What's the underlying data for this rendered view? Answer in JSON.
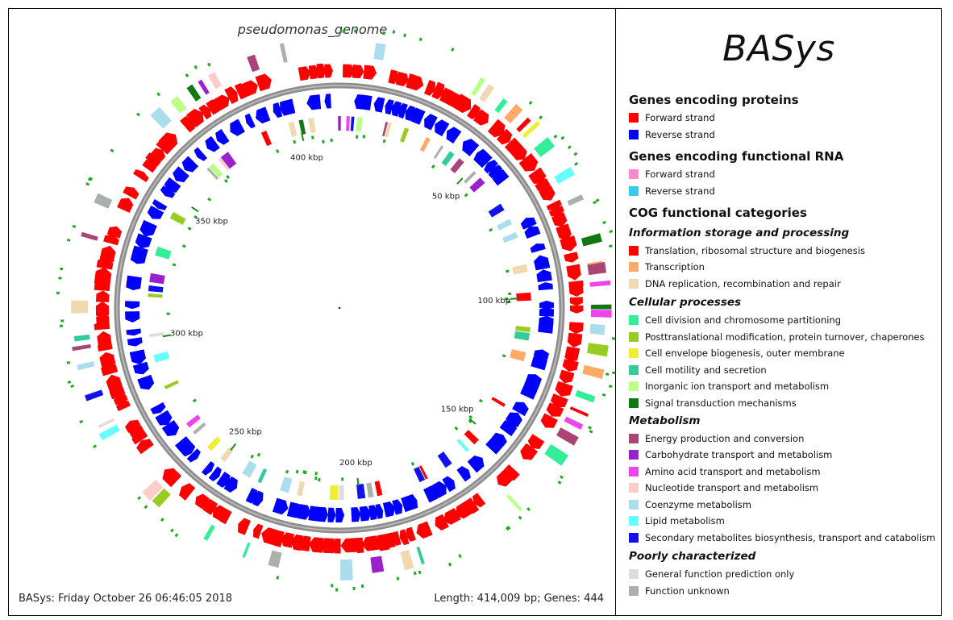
{
  "map": {
    "title": "pseudomonas_genome",
    "footer_left": "BASys: Friday October 26 06:46:05 2018",
    "footer_right": "Length: 414,009 bp; Genes: 444",
    "length_bp": 414009,
    "gene_count": 444,
    "tick_labels": [
      "50 kbp",
      "100 kbp",
      "150 kbp",
      "200 kbp",
      "250 kbp",
      "300 kbp",
      "350 kbp",
      "400 kbp"
    ],
    "tick_positions_kbp": [
      50,
      100,
      150,
      200,
      250,
      300,
      350,
      400
    ]
  },
  "legend": {
    "logo": "BASys",
    "sections": [
      {
        "heading": "Genes encoding proteins",
        "items": [
          {
            "label": "Forward strand",
            "color": "#ff0000"
          },
          {
            "label": "Reverse strand",
            "color": "#0000ff"
          }
        ]
      },
      {
        "heading": "Genes encoding functional RNA",
        "items": [
          {
            "label": "Forward strand",
            "color": "#ff88c8"
          },
          {
            "label": "Reverse strand",
            "color": "#33ccee"
          }
        ]
      },
      {
        "heading": "COG functional categories",
        "groups": [
          {
            "name": "Information storage and processing",
            "items": [
              {
                "label": "Translation, ribosomal structure and biogenesis",
                "color": "#ff0000"
              },
              {
                "label": "Transcription",
                "color": "#ffaa66"
              },
              {
                "label": "DNA replication, recombination and repair",
                "color": "#f0d8b0"
              }
            ]
          },
          {
            "name": "Cellular processes",
            "items": [
              {
                "label": "Cell division and chromosome partitioning",
                "color": "#33ee99"
              },
              {
                "label": "Posttranslational modification, protein turnover, chaperones",
                "color": "#99cc22"
              },
              {
                "label": "Cell envelope biogenesis, outer membrane",
                "color": "#eeee33"
              },
              {
                "label": "Cell motility and secretion",
                "color": "#33cc99"
              },
              {
                "label": "Inorganic ion transport and metabolism",
                "color": "#bbff88"
              },
              {
                "label": "Signal transduction mechanisms",
                "color": "#117711"
              }
            ]
          },
          {
            "name": "Metabolism",
            "items": [
              {
                "label": "Energy production and conversion",
                "color": "#aa4477"
              },
              {
                "label": "Carbohydrate transport and metabolism",
                "color": "#9922cc"
              },
              {
                "label": "Amino acid transport and metabolism",
                "color": "#ee44ee"
              },
              {
                "label": "Nucleotide transport and metabolism",
                "color": "#ffcccc"
              },
              {
                "label": "Coenzyme metabolism",
                "color": "#aaddee"
              },
              {
                "label": "Lipid metabolism",
                "color": "#66ffff"
              },
              {
                "label": "Secondary metabolites biosynthesis, transport and catabolism",
                "color": "#1111ee"
              }
            ]
          },
          {
            "name": "Poorly characterized",
            "items": [
              {
                "label": "General function prediction only",
                "color": "#dddddd"
              },
              {
                "label": "Function unknown",
                "color": "#aab0aa"
              }
            ]
          }
        ]
      }
    ]
  }
}
